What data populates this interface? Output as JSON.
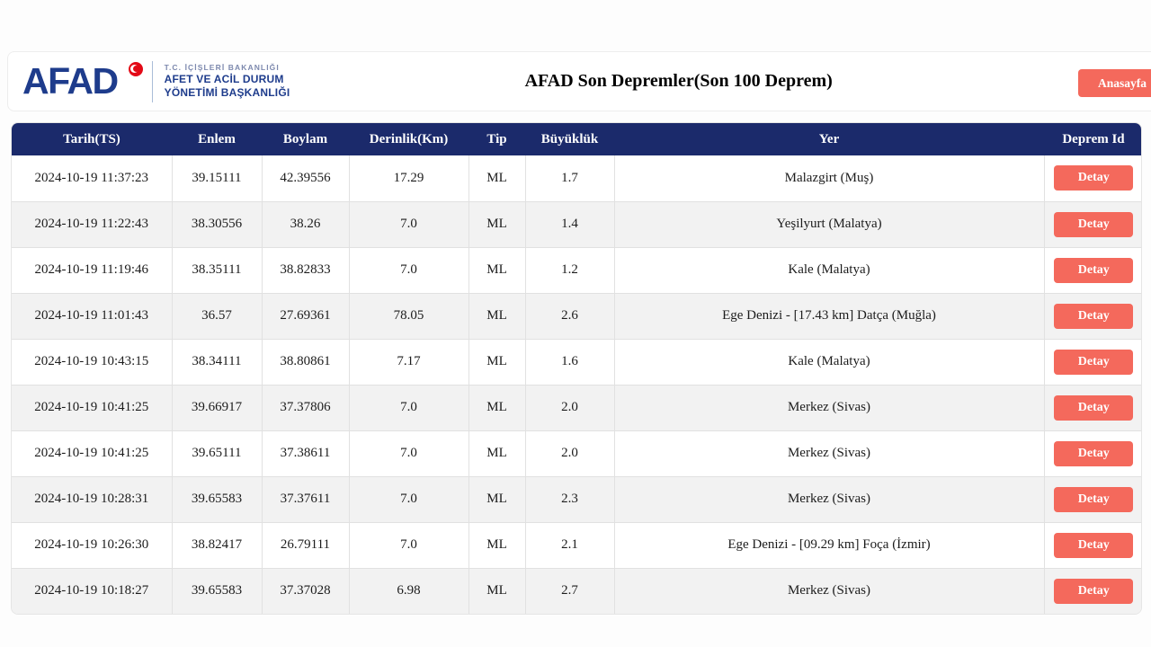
{
  "colors": {
    "navy": "#1b2a6b",
    "logo_blue": "#1e3c8c",
    "salmon": "#f4695c",
    "flag_red": "#e30a17",
    "row_alt": "#f2f2f2",
    "cell_border": "#e1e1e1"
  },
  "header": {
    "logo_text": "AFAD",
    "ministry_line1": "T.C. İÇİ�LERİ BAKANLIĞI",
    "ministry_line1_correct": "T.C. İÇİŞLERİ BAKANLIĞI",
    "ministry_line2": "AFET VE ACİL DURUM",
    "ministry_line3": "YÖNETİMİ BAŞKANLIĞI",
    "page_title": "AFAD Son Depremler(Son 100 Deprem)",
    "home_button_label": "Anasayfa"
  },
  "table": {
    "columns": [
      "Tarih(TS)",
      "Enlem",
      "Boylam",
      "Derinlik(Km)",
      "Tip",
      "Büyüklük",
      "Yer",
      "Deprem Id"
    ],
    "detail_button_label": "Detay",
    "rows": [
      {
        "tarih": "2024-10-19 11:37:23",
        "enlem": "39.15111",
        "boylam": "42.39556",
        "derinlik": "17.29",
        "tip": "ML",
        "buyukluk": "1.7",
        "yer": "Malazgirt (Muş)"
      },
      {
        "tarih": "2024-10-19 11:22:43",
        "enlem": "38.30556",
        "boylam": "38.26",
        "derinlik": "7.0",
        "tip": "ML",
        "buyukluk": "1.4",
        "yer": "Yeşilyurt (Malatya)"
      },
      {
        "tarih": "2024-10-19 11:19:46",
        "enlem": "38.35111",
        "boylam": "38.82833",
        "derinlik": "7.0",
        "tip": "ML",
        "buyukluk": "1.2",
        "yer": "Kale (Malatya)"
      },
      {
        "tarih": "2024-10-19 11:01:43",
        "enlem": "36.57",
        "boylam": "27.69361",
        "derinlik": "78.05",
        "tip": "ML",
        "buyukluk": "2.6",
        "yer": "Ege Denizi - [17.43 km] Datça (Muğla)"
      },
      {
        "tarih": "2024-10-19 10:43:15",
        "enlem": "38.34111",
        "boylam": "38.80861",
        "derinlik": "7.17",
        "tip": "ML",
        "buyukluk": "1.6",
        "yer": "Kale (Malatya)"
      },
      {
        "tarih": "2024-10-19 10:41:25",
        "enlem": "39.66917",
        "boylam": "37.37806",
        "derinlik": "7.0",
        "tip": "ML",
        "buyukluk": "2.0",
        "yer": "Merkez (Sivas)"
      },
      {
        "tarih": "2024-10-19 10:41:25",
        "enlem": "39.65111",
        "boylam": "37.38611",
        "derinlik": "7.0",
        "tip": "ML",
        "buyukluk": "2.0",
        "yer": "Merkez (Sivas)"
      },
      {
        "tarih": "2024-10-19 10:28:31",
        "enlem": "39.65583",
        "boylam": "37.37611",
        "derinlik": "7.0",
        "tip": "ML",
        "buyukluk": "2.3",
        "yer": "Merkez (Sivas)"
      },
      {
        "tarih": "2024-10-19 10:26:30",
        "enlem": "38.82417",
        "boylam": "26.79111",
        "derinlik": "7.0",
        "tip": "ML",
        "buyukluk": "2.1",
        "yer": "Ege Denizi - [09.29 km] Foça (İzmir)"
      },
      {
        "tarih": "2024-10-19 10:18:27",
        "enlem": "39.65583",
        "boylam": "37.37028",
        "derinlik": "6.98",
        "tip": "ML",
        "buyukluk": "2.7",
        "yer": "Merkez (Sivas)"
      }
    ]
  }
}
